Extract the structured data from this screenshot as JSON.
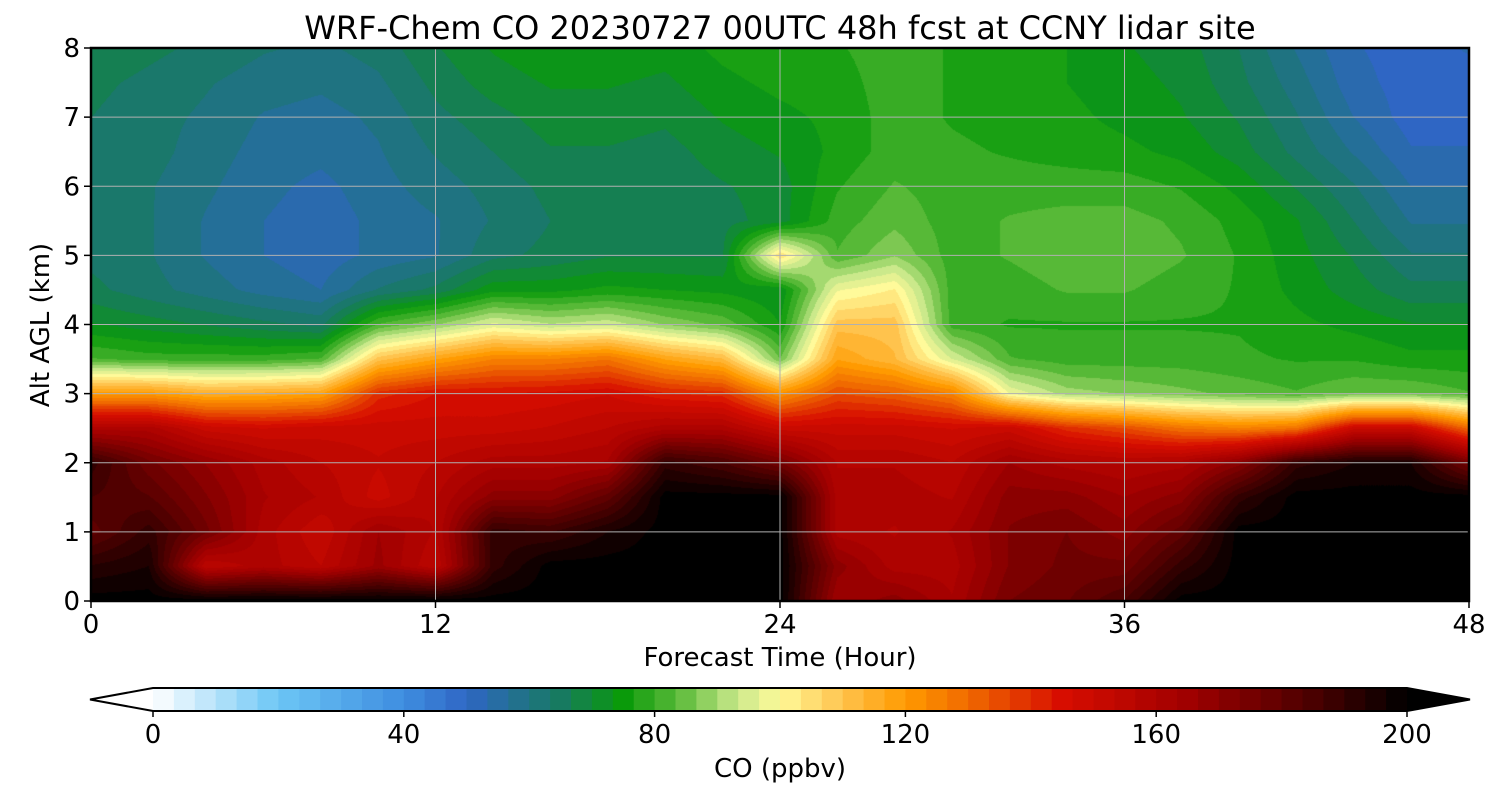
{
  "chart_data": {
    "type": "heatmap",
    "title": "WRF-Chem CO  20230727 00UTC 48h fcst at CCNY lidar site",
    "xlabel": "Forecast Time (Hour)",
    "ylabel": "Alt AGL (km)",
    "xlim": [
      0,
      48
    ],
    "ylim": [
      0,
      8
    ],
    "x_ticks": [
      "0",
      "12",
      "24",
      "36",
      "48"
    ],
    "y_ticks": [
      "0",
      "1",
      "2",
      "3",
      "4",
      "5",
      "6",
      "7",
      "8"
    ],
    "grid": true,
    "colorbar": {
      "label": "CO  (ppbv)",
      "range": [
        0,
        200
      ],
      "ticks": [
        "0",
        "40",
        "80",
        "120",
        "160",
        "200"
      ],
      "extend": "both",
      "stops": [
        {
          "value": 0,
          "color": "#ffffff"
        },
        {
          "value": 20,
          "color": "#6cc6f5"
        },
        {
          "value": 40,
          "color": "#3e8de0"
        },
        {
          "value": 50,
          "color": "#2f66c4"
        },
        {
          "value": 65,
          "color": "#177a60"
        },
        {
          "value": 75,
          "color": "#0a9a0a"
        },
        {
          "value": 84,
          "color": "#5dbb3b"
        },
        {
          "value": 93,
          "color": "#c8e88a"
        },
        {
          "value": 100,
          "color": "#fffa9a"
        },
        {
          "value": 110,
          "color": "#ffc34d"
        },
        {
          "value": 120,
          "color": "#ff9a00"
        },
        {
          "value": 130,
          "color": "#f06a00"
        },
        {
          "value": 145,
          "color": "#d70d00"
        },
        {
          "value": 165,
          "color": "#a00000"
        },
        {
          "value": 185,
          "color": "#4a0000"
        },
        {
          "value": 200,
          "color": "#000000"
        }
      ]
    },
    "times": [
      0,
      2,
      4,
      6,
      8,
      10,
      12,
      14,
      16,
      18,
      20,
      22,
      24,
      26,
      28,
      30,
      32,
      34,
      36,
      38,
      40,
      42,
      44,
      46,
      48
    ],
    "altitudes": [
      0,
      0.5,
      1,
      1.5,
      2,
      2.5,
      3,
      3.5,
      4,
      4.5,
      5,
      5.5,
      6,
      6.5,
      7,
      7.5,
      8
    ],
    "values": [
      [
        200,
        192,
        180,
        185,
        190,
        160,
        120,
        82,
        72,
        66,
        64,
        64,
        64,
        65,
        65,
        66,
        68
      ],
      [
        200,
        195,
        190,
        182,
        176,
        160,
        120,
        80,
        70,
        63,
        62,
        62,
        62,
        63,
        63,
        64,
        66
      ],
      [
        200,
        155,
        176,
        172,
        168,
        150,
        115,
        80,
        68,
        60,
        58,
        58,
        59,
        60,
        61,
        62,
        64
      ],
      [
        200,
        160,
        160,
        162,
        160,
        148,
        116,
        80,
        66,
        57,
        55,
        55,
        56,
        57,
        58,
        60,
        62
      ],
      [
        200,
        155,
        152,
        158,
        155,
        150,
        118,
        82,
        64,
        55,
        53,
        53,
        54,
        56,
        57,
        59,
        61
      ],
      [
        200,
        166,
        165,
        150,
        152,
        150,
        140,
        110,
        82,
        62,
        56,
        56,
        57,
        58,
        59,
        61,
        63
      ],
      [
        200,
        155,
        158,
        158,
        155,
        150,
        145,
        118,
        88,
        66,
        58,
        58,
        60,
        62,
        64,
        66,
        68
      ],
      [
        200,
        190,
        190,
        170,
        160,
        150,
        145,
        125,
        96,
        74,
        64,
        62,
        63,
        65,
        67,
        70,
        72
      ],
      [
        200,
        200,
        188,
        170,
        160,
        152,
        146,
        125,
        92,
        74,
        66,
        65,
        66,
        68,
        70,
        72,
        74
      ],
      [
        200,
        200,
        195,
        180,
        162,
        155,
        148,
        128,
        94,
        76,
        68,
        66,
        66,
        68,
        70,
        72,
        74
      ],
      [
        200,
        200,
        200,
        200,
        190,
        160,
        142,
        118,
        88,
        75,
        68,
        66,
        66,
        67,
        69,
        71,
        73
      ],
      [
        200,
        200,
        200,
        200,
        185,
        160,
        140,
        112,
        84,
        74,
        68,
        67,
        68,
        70,
        72,
        74,
        76
      ],
      [
        200,
        200,
        200,
        200,
        175,
        150,
        122,
        85,
        75,
        72,
        105,
        70,
        70,
        72,
        74,
        76,
        78
      ],
      [
        165,
        170,
        160,
        160,
        158,
        150,
        135,
        118,
        110,
        98,
        82,
        80,
        78,
        76,
        76,
        77,
        78
      ],
      [
        170,
        160,
        158,
        160,
        158,
        150,
        132,
        112,
        110,
        102,
        88,
        84,
        82,
        80,
        80,
        80,
        80
      ],
      [
        162,
        160,
        162,
        158,
        155,
        148,
        125,
        95,
        80,
        80,
        80,
        80,
        80,
        79,
        78,
        78,
        78
      ],
      [
        175,
        172,
        172,
        170,
        165,
        150,
        98,
        82,
        78,
        80,
        82,
        82,
        80,
        78,
        77,
        76,
        76
      ],
      [
        178,
        176,
        175,
        170,
        160,
        140,
        90,
        80,
        78,
        82,
        84,
        83,
        80,
        77,
        76,
        75,
        75
      ],
      [
        185,
        176,
        170,
        165,
        158,
        135,
        88,
        80,
        78,
        82,
        84,
        83,
        80,
        76,
        74,
        73,
        72
      ],
      [
        200,
        190,
        180,
        170,
        160,
        128,
        86,
        80,
        78,
        80,
        82,
        81,
        78,
        74,
        72,
        71,
        70
      ],
      [
        200,
        200,
        200,
        190,
        170,
        125,
        84,
        79,
        78,
        78,
        78,
        77,
        74,
        70,
        68,
        66,
        65
      ],
      [
        200,
        200,
        200,
        200,
        190,
        128,
        82,
        78,
        76,
        74,
        73,
        72,
        68,
        64,
        62,
        60,
        58
      ],
      [
        200,
        200,
        200,
        200,
        195,
        150,
        85,
        78,
        74,
        70,
        68,
        65,
        62,
        58,
        55,
        53,
        52
      ],
      [
        200,
        200,
        200,
        200,
        195,
        150,
        85,
        76,
        72,
        66,
        62,
        58,
        55,
        52,
        50,
        50,
        50
      ],
      [
        200,
        200,
        200,
        200,
        175,
        130,
        82,
        76,
        72,
        66,
        62,
        58,
        55,
        52,
        50,
        50,
        52
      ]
    ]
  }
}
